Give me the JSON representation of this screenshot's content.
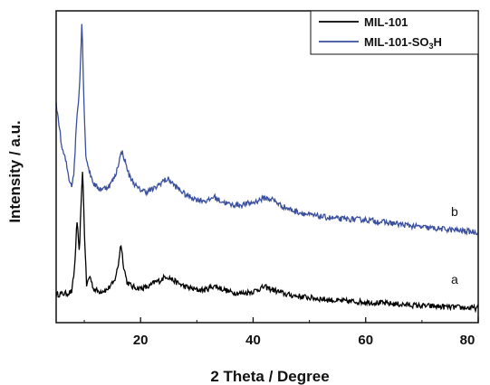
{
  "chart_data": {
    "type": "line",
    "title": "",
    "xlabel": "2 Theta / Degree",
    "ylabel": "Intensity / a.u.",
    "xlim": [
      5,
      80
    ],
    "ylim": [
      0,
      1
    ],
    "x_ticks": [
      "20",
      "40",
      "60",
      "80"
    ],
    "grid": false,
    "legend_position": "top-right",
    "series": [
      {
        "name": "MIL-101",
        "legend_base": "MIL-101",
        "label": "a",
        "color": "#000000",
        "points": [
          [
            5,
            0.09
          ],
          [
            6,
            0.092
          ],
          [
            7,
            0.094
          ],
          [
            7.8,
            0.1
          ],
          [
            8.3,
            0.18
          ],
          [
            8.7,
            0.33
          ],
          [
            9.1,
            0.22
          ],
          [
            9.4,
            0.36
          ],
          [
            9.7,
            0.5
          ],
          [
            10.0,
            0.3
          ],
          [
            10.4,
            0.12
          ],
          [
            11.0,
            0.15
          ],
          [
            11.6,
            0.11
          ],
          [
            12.5,
            0.1
          ],
          [
            14.0,
            0.105
          ],
          [
            15.3,
            0.13
          ],
          [
            16.0,
            0.18
          ],
          [
            16.5,
            0.255
          ],
          [
            17.0,
            0.18
          ],
          [
            17.6,
            0.13
          ],
          [
            18.5,
            0.115
          ],
          [
            20.0,
            0.11
          ],
          [
            21.5,
            0.115
          ],
          [
            22.5,
            0.13
          ],
          [
            23.5,
            0.135
          ],
          [
            24.5,
            0.15
          ],
          [
            25.5,
            0.14
          ],
          [
            26.5,
            0.128
          ],
          [
            28.0,
            0.115
          ],
          [
            30.0,
            0.105
          ],
          [
            31.5,
            0.105
          ],
          [
            33.0,
            0.118
          ],
          [
            34.5,
            0.108
          ],
          [
            36.0,
            0.098
          ],
          [
            38.0,
            0.094
          ],
          [
            40.0,
            0.1
          ],
          [
            42.0,
            0.115
          ],
          [
            44.0,
            0.102
          ],
          [
            46.0,
            0.09
          ],
          [
            50.0,
            0.08
          ],
          [
            55.0,
            0.07
          ],
          [
            60.0,
            0.066
          ],
          [
            65.0,
            0.06
          ],
          [
            70.0,
            0.054
          ],
          [
            75.0,
            0.05
          ],
          [
            80.0,
            0.046
          ]
        ]
      },
      {
        "name": "MIL-101-SO3H",
        "legend_base": "MIL-101-SO",
        "legend_sub": "3",
        "legend_suffix": "H",
        "label": "b",
        "color": "#3a4f9e",
        "points": [
          [
            5,
            0.7
          ],
          [
            5.5,
            0.64
          ],
          [
            6.0,
            0.56
          ],
          [
            6.7,
            0.52
          ],
          [
            7.3,
            0.46
          ],
          [
            7.8,
            0.44
          ],
          [
            8.2,
            0.49
          ],
          [
            8.6,
            0.64
          ],
          [
            9.0,
            0.72
          ],
          [
            9.3,
            0.82
          ],
          [
            9.6,
            0.98
          ],
          [
            9.9,
            0.72
          ],
          [
            10.3,
            0.53
          ],
          [
            11.0,
            0.48
          ],
          [
            11.7,
            0.445
          ],
          [
            12.5,
            0.43
          ],
          [
            13.5,
            0.43
          ],
          [
            14.5,
            0.44
          ],
          [
            15.5,
            0.47
          ],
          [
            16.2,
            0.52
          ],
          [
            16.7,
            0.55
          ],
          [
            17.2,
            0.52
          ],
          [
            18.0,
            0.47
          ],
          [
            19.5,
            0.43
          ],
          [
            21.0,
            0.42
          ],
          [
            22.5,
            0.43
          ],
          [
            24.0,
            0.455
          ],
          [
            25.0,
            0.46
          ],
          [
            26.0,
            0.44
          ],
          [
            28.0,
            0.41
          ],
          [
            30.0,
            0.395
          ],
          [
            32.0,
            0.39
          ],
          [
            33.0,
            0.405
          ],
          [
            34.0,
            0.392
          ],
          [
            36.0,
            0.378
          ],
          [
            38.0,
            0.378
          ],
          [
            40.0,
            0.385
          ],
          [
            42.0,
            0.4
          ],
          [
            43.5,
            0.395
          ],
          [
            45.0,
            0.375
          ],
          [
            47.0,
            0.36
          ],
          [
            50.0,
            0.345
          ],
          [
            55.0,
            0.333
          ],
          [
            60.0,
            0.33
          ],
          [
            65.0,
            0.318
          ],
          [
            70.0,
            0.306
          ],
          [
            75.0,
            0.298
          ],
          [
            80.0,
            0.29
          ]
        ]
      }
    ]
  }
}
